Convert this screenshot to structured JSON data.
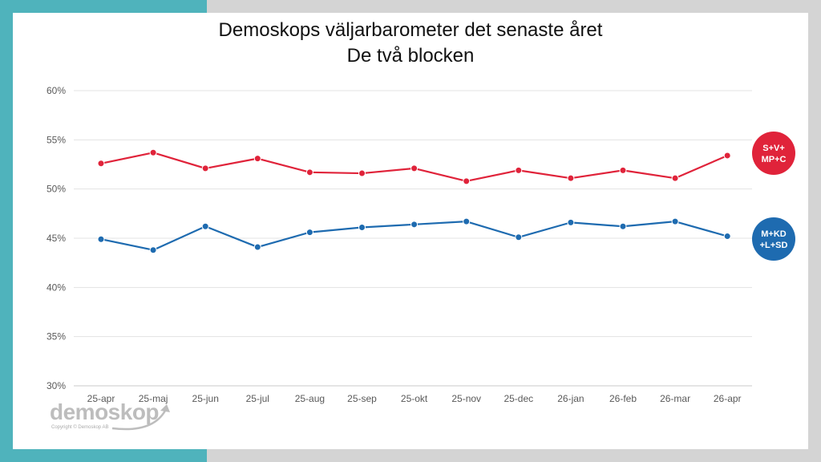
{
  "colors": {
    "red": "#e0233a",
    "blue": "#1e6bb0",
    "teal": "#4fb3bc",
    "grid": "#e3e3e3"
  },
  "title_line1": "Demoskops väljarbarometer det senaste året",
  "title_line2": "De två blocken",
  "logo": {
    "name": "demoskop",
    "copyright": "Copyright © Demoskop AB"
  },
  "chart_data": {
    "type": "line",
    "title": "Demoskops väljarbarometer det senaste året – De två blocken",
    "categories": [
      "25-apr",
      "25-maj",
      "25-jun",
      "25-jul",
      "25-aug",
      "25-sep",
      "25-okt",
      "25-nov",
      "25-dec",
      "26-jan",
      "26-feb",
      "26-mar",
      "26-apr"
    ],
    "y_ticks": [
      "30%",
      "35%",
      "40%",
      "45%",
      "50%",
      "55%",
      "60%"
    ],
    "ylim": [
      30,
      60
    ],
    "series": [
      {
        "name": "S+V+MP+C",
        "label_line1": "S+V+",
        "label_line2": "MP+C",
        "color": "#e0233a",
        "values": [
          52.6,
          53.7,
          52.1,
          53.1,
          51.7,
          51.6,
          52.1,
          50.8,
          51.9,
          51.1,
          51.9,
          51.1,
          53.4
        ]
      },
      {
        "name": "M+KD+L+SD",
        "label_line1": "M+KD",
        "label_line2": "+L+SD",
        "color": "#1e6bb0",
        "values": [
          44.9,
          43.8,
          46.2,
          44.1,
          45.6,
          46.1,
          46.4,
          46.7,
          45.1,
          46.6,
          46.2,
          46.7,
          45.2
        ]
      }
    ]
  }
}
